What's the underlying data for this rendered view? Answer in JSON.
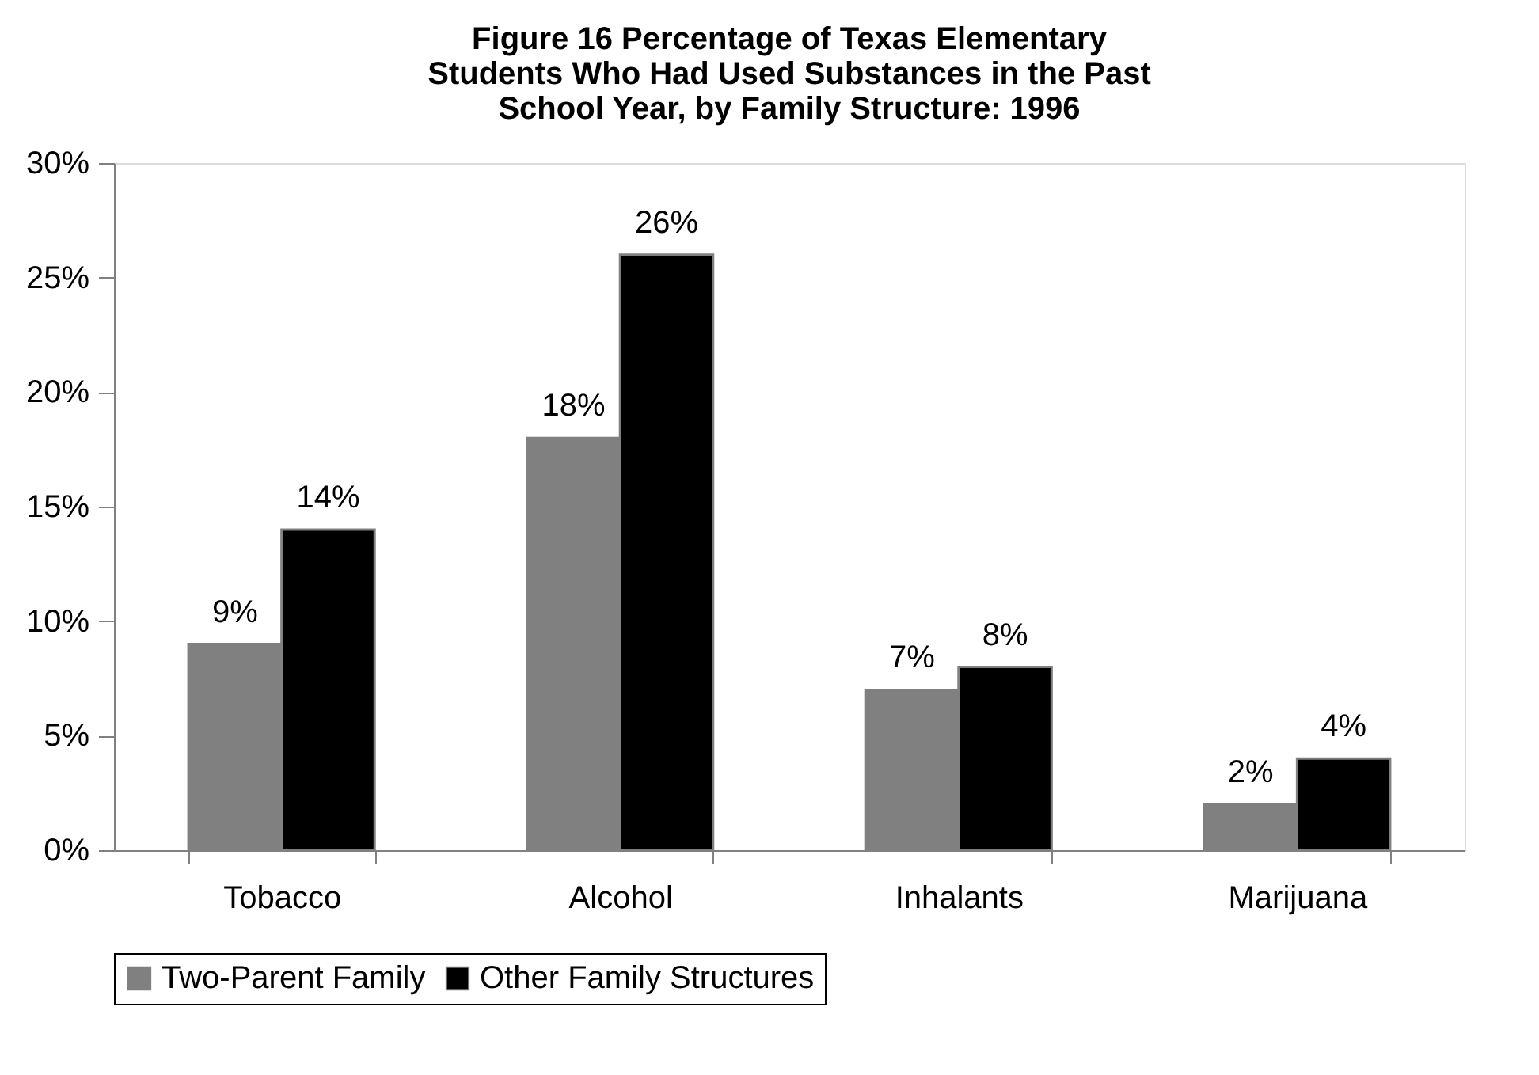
{
  "chart_data": {
    "type": "bar",
    "title": "Figure 16 Percentage of Texas Elementary Students Who Had Used Substances in the Past School Year, by Family Structure: 1996",
    "categories": [
      "Tobacco",
      "Alcohol",
      "Inhalants",
      "Marijuana"
    ],
    "series": [
      {
        "name": "Two-Parent Family",
        "color": "#808080",
        "values": [
          9,
          18,
          7,
          2
        ],
        "value_labels": [
          "9%",
          "18%",
          "7%",
          "2%"
        ]
      },
      {
        "name": "Other Family Structures",
        "color": "#000000",
        "values": [
          14,
          26,
          8,
          4
        ],
        "value_labels": [
          "14%",
          "26%",
          "8%",
          "4%"
        ]
      }
    ],
    "ylim": [
      0,
      30
    ],
    "yticks": [
      {
        "value": 0,
        "label": "0%"
      },
      {
        "value": 5,
        "label": "5%"
      },
      {
        "value": 10,
        "label": "10%"
      },
      {
        "value": 15,
        "label": "15%"
      },
      {
        "value": 20,
        "label": "20%"
      },
      {
        "value": 25,
        "label": "25%"
      },
      {
        "value": 30,
        "label": "30%"
      }
    ],
    "grid": false,
    "legend": "bottom"
  }
}
